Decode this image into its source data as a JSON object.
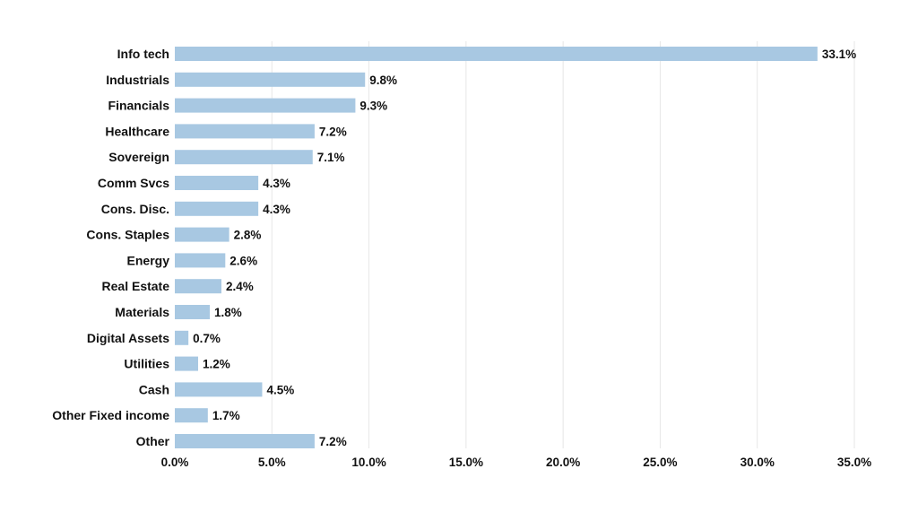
{
  "colors": {
    "bar": "#a8c8e2",
    "grid": "#e6e6e6",
    "text": "#111111",
    "background": "#ffffff"
  },
  "chart_data": {
    "type": "bar",
    "orientation": "horizontal",
    "title": "",
    "xlabel": "",
    "ylabel": "",
    "xlim": [
      0,
      35
    ],
    "grid": true,
    "legend": "none",
    "categories": [
      "Info tech",
      "Industrials",
      "Financials",
      "Healthcare",
      "Sovereign",
      "Comm Svcs",
      "Cons. Disc.",
      "Cons. Staples",
      "Energy",
      "Real Estate",
      "Materials",
      "Digital Assets",
      "Utilities",
      "Cash",
      "Other Fixed income",
      "Other"
    ],
    "values": [
      33.1,
      9.8,
      9.3,
      7.2,
      7.1,
      4.3,
      4.3,
      2.8,
      2.6,
      2.4,
      1.8,
      0.7,
      1.2,
      4.5,
      1.7,
      7.2
    ],
    "value_labels": [
      "33.1%",
      "9.8%",
      "9.3%",
      "7.2%",
      "7.1%",
      "4.3%",
      "4.3%",
      "2.8%",
      "2.6%",
      "2.4%",
      "1.8%",
      "0.7%",
      "1.2%",
      "4.5%",
      "1.7%",
      "7.2%"
    ],
    "x_ticks": [
      0,
      5,
      10,
      15,
      20,
      25,
      30,
      35
    ],
    "x_tick_labels": [
      "0.0%",
      "5.0%",
      "10.0%",
      "15.0%",
      "20.0%",
      "25.0%",
      "30.0%",
      "35.0%"
    ]
  }
}
